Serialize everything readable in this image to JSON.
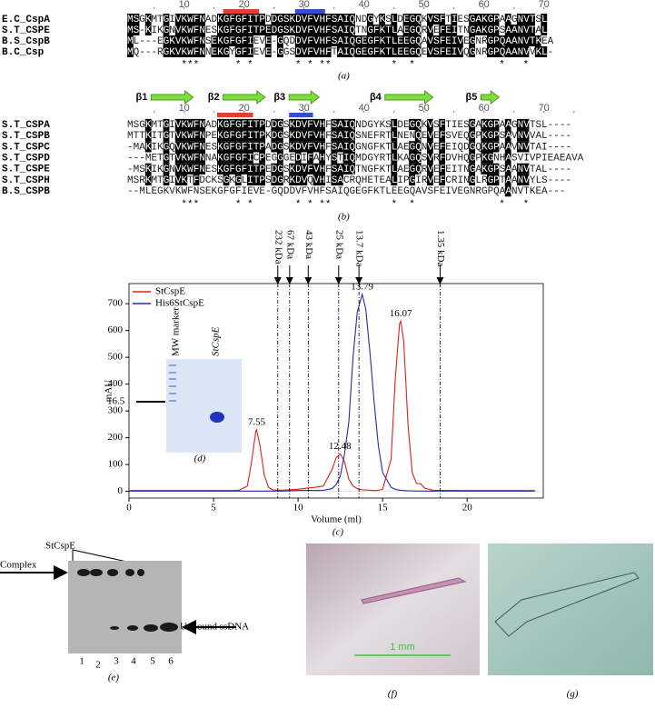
{
  "panel_a": {
    "ruler": [
      10,
      20,
      30,
      40,
      50,
      60,
      70
    ],
    "rows": [
      {
        "name": "E.C_CspA",
        "sequence": "MSGKMTGIVKWFNADKGFGFITPDDGSKDVFVHFSAIQNDGYKSLDEGQKVSFTIESGAKGPAAGNVTSL"
      },
      {
        "name": "S.T_CSPE",
        "sequence": "MS-KIKGNVKWFNESKGFGFITPEDGSKDVFVHFSAIQTNGFKTLAEGQRVEFEITNGAKGPSAANVTAL"
      },
      {
        "name": "B.S_CspB",
        "sequence": "ML---EGKVKWFNSEKGFGFIEVE-GQDDVFVHFSAIQGEGFKTLEEGQAVSFEIVEGNRGPQAANVTKEA"
      },
      {
        "name": "B.C_Csp",
        "sequence": "MQ---RGKVKWFNNEKGYGFIEVE-GGSDVFVHFTAIQGEGFKTLEEGQEVSFEIVQGNRGPQAANVVKL-"
      }
    ],
    "stars": "         ***      * *       * * **          *  *              *   *",
    "label": "(a)"
  },
  "panel_b": {
    "strands": [
      "β1",
      "β2",
      "β3",
      "β4",
      "β5"
    ],
    "ruler": [
      10,
      20,
      30,
      40,
      50,
      60,
      70
    ],
    "rows": [
      {
        "name": "S.T_CSPA",
        "sequence": "MSGKMTGIVKWFNADKGFGFITPDDGSKDVFVHFSAIQNDGYKSLDEGQKVSFTIESGAKGPAAGNVTSL----"
      },
      {
        "name": "S.T_CSPB",
        "sequence": "MTTKITGTVKWFNPEKGFGFITPKDGSKDVFVHFSAIQSNEFRTLNENQEVEFSVEQGPKGPSAVNVVAL----"
      },
      {
        "name": "S.T_CSPC",
        "sequence": "-MAKIKGQVKWFNESKGFGFITPADGSKDVFVHFSAIQGNGFKTLAEGQNVEFEIQDGQKGPAAVNVTAI----"
      },
      {
        "name": "S.T_CSPD",
        "sequence": "---METGTVKWFNNAKGFGFICPEGGGEDIFAHYSTIQMDGYRTLKAGQSVRFDVHQGPKGNHASVIVPIEAEAVA"
      },
      {
        "name": "S.T_CSPE",
        "sequence": "-MSKIKGNVKWFNESKGFGFITPEDGSKDVFVHFSAIQTNGFKTLAEGQRVEFEITNGAKGPSAANVTAL----"
      },
      {
        "name": "S.T_CSPH",
        "sequence": "MSRKMTGIVKTFDCKSGKGLITPSDGRKDVQVHISACRQHETEALIPGIRVEFCRINGLRGPTAANVYLS----"
      },
      {
        "name": "B.S_CSPB",
        "sequence": "--MLEGKVKWFNSEKGFGFIEVE-GQDDVFVHFSAIQGEGFKTLEEGQAVSFEIVEGNRGPQAANVTKEA---"
      }
    ],
    "stars": "         ***      * *       * * **          *  *              *   *",
    "label": "(b)"
  },
  "chart_data": {
    "type": "line",
    "xlabel": "Volume (ml)",
    "ylabel": "mAU",
    "label": "(c)",
    "x": [
      0,
      2,
      4,
      6,
      6.5,
      7,
      7.25,
      7.5,
      7.55,
      7.75,
      8,
      8.25,
      8.5,
      9,
      10,
      10.5,
      11,
      11.5,
      12,
      12.25,
      12.48,
      12.5,
      12.75,
      13,
      13.25,
      13.5,
      13.79,
      14,
      14.25,
      14.5,
      14.75,
      15,
      15.5,
      15.75,
      16,
      16.07,
      16.25,
      16.5,
      16.75,
      17,
      17.25,
      17.5,
      18,
      20,
      24
    ],
    "series": [
      {
        "name": "StCspE",
        "color": "#e0201e",
        "values": [
          3,
          3,
          3,
          3,
          4,
          20,
          110,
          225,
          230,
          170,
          60,
          15,
          5,
          4,
          8,
          12,
          15,
          20,
          80,
          125,
          140,
          139,
          110,
          45,
          20,
          10,
          6,
          5,
          4,
          3,
          4,
          8,
          120,
          420,
          625,
          635,
          560,
          250,
          70,
          30,
          28,
          12,
          4,
          3,
          3
        ]
      },
      {
        "name": "His6StCspE",
        "color": "#2b2ba6",
        "values": [
          1,
          1,
          1,
          1,
          1,
          1,
          1,
          1,
          1,
          1,
          1,
          1,
          1,
          1,
          3,
          4,
          3,
          4,
          10,
          25,
          55,
          60,
          140,
          260,
          500,
          670,
          735,
          680,
          520,
          330,
          170,
          70,
          15,
          8,
          4,
          4,
          3,
          2,
          2,
          1,
          1,
          1,
          1,
          1,
          1
        ]
      }
    ],
    "xlim": [
      0,
      24.5
    ],
    "ylim": [
      -25,
      775
    ],
    "xticks": [
      0,
      5,
      10,
      15,
      20
    ],
    "yticks": [
      0,
      100,
      200,
      300,
      400,
      500,
      600,
      700
    ],
    "annotations": [
      {
        "text": "7.55",
        "x": 7.55,
        "y": 230
      },
      {
        "text": "12.48",
        "x": 12.48,
        "y": 140
      },
      {
        "text": "13.79",
        "x": 13.79,
        "y": 735
      },
      {
        "text": "16.07",
        "x": 16.07,
        "y": 635
      }
    ],
    "markers": [
      {
        "text": "232 kDa",
        "x": 8.8
      },
      {
        "text": "67 kDa",
        "x": 9.5
      },
      {
        "text": "43 kDa",
        "x": 10.6
      },
      {
        "text": "25 kDa",
        "x": 12.4
      },
      {
        "text": "13.7 kDa",
        "x": 13.6
      },
      {
        "text": "1.35 kDa",
        "x": 18.4
      }
    ]
  },
  "panel_d": {
    "lanes": [
      "MW marker",
      "StCspE"
    ],
    "mw": "16.5",
    "label": "(d)"
  },
  "panel_e": {
    "protein": "StCspE",
    "complex": "Complex",
    "unbound": "Unbound ssDNA",
    "lanes": [
      "1",
      "2",
      "3",
      "4",
      "5",
      "6"
    ],
    "label": "(e)"
  },
  "panel_f": {
    "scale": "1 mm",
    "label": "(f)"
  },
  "panel_g": {
    "label": "(g)"
  }
}
